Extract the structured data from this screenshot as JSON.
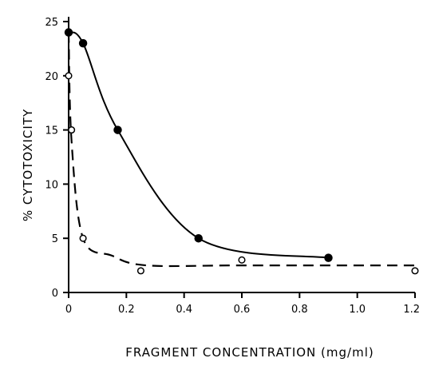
{
  "chart_data": {
    "type": "scatter",
    "title": "",
    "xlabel": "FRAGMENT CONCENTRATION (mg/ml)",
    "ylabel": "% CYTOTOXICITY",
    "xlim": [
      0,
      1.2
    ],
    "ylim": [
      0,
      25
    ],
    "x_ticks": [
      "0",
      "0.2",
      "0.4",
      "0.6",
      "0.8",
      "1.0",
      "1.2"
    ],
    "y_ticks": [
      "0",
      "5",
      "10",
      "15",
      "20",
      "25"
    ],
    "grid": false,
    "legend": "none",
    "series": [
      {
        "marker": "filled-circle",
        "line_style": "solid",
        "color": "#000000",
        "points": [
          {
            "x": 0,
            "y": 24
          },
          {
            "x": 0.05,
            "y": 23
          },
          {
            "x": 0.17,
            "y": 15
          },
          {
            "x": 0.45,
            "y": 5
          },
          {
            "x": 0.9,
            "y": 3.2
          }
        ]
      },
      {
        "marker": "open-circle",
        "line_style": "dashed",
        "color": "#000000",
        "points": [
          {
            "x": 0,
            "y": 20
          },
          {
            "x": 0.01,
            "y": 15
          },
          {
            "x": 0.05,
            "y": 5
          },
          {
            "x": 0.25,
            "y": 2
          },
          {
            "x": 0.6,
            "y": 3
          },
          {
            "x": 1.2,
            "y": 2
          }
        ]
      }
    ]
  }
}
